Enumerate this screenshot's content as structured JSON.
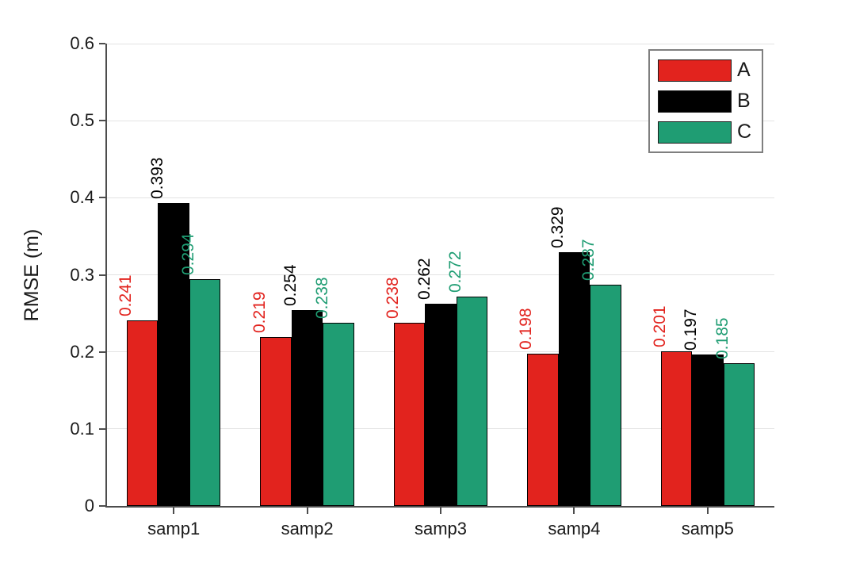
{
  "chart_data": {
    "type": "bar",
    "title": "",
    "xlabel": "",
    "ylabel": "RMSE (m)",
    "categories": [
      "samp1",
      "samp2",
      "samp3",
      "samp4",
      "samp5"
    ],
    "series": [
      {
        "name": "A",
        "color": "#e2231e",
        "values": [
          0.241,
          0.219,
          0.238,
          0.198,
          0.201
        ]
      },
      {
        "name": "B",
        "color": "#000000",
        "values": [
          0.393,
          0.254,
          0.262,
          0.329,
          0.197
        ]
      },
      {
        "name": "C",
        "color": "#1f9d73",
        "values": [
          0.294,
          0.238,
          0.272,
          0.287,
          0.185
        ]
      }
    ],
    "ylim": [
      0,
      0.6
    ],
    "yticks": [
      0,
      0.1,
      0.2,
      0.3,
      0.4,
      0.5,
      0.6
    ],
    "ytick_labels": [
      "0",
      "0.1",
      "0.2",
      "0.3",
      "0.4",
      "0.5",
      "0.6"
    ],
    "grid": true,
    "legend_position": "top-right",
    "value_labels": true,
    "value_label_decimals": 3,
    "colors": {
      "grid": "#e3e3e3",
      "axis": "#4d4d4d",
      "legend_border": "#7f7f7f",
      "background": "#ffffff"
    }
  }
}
